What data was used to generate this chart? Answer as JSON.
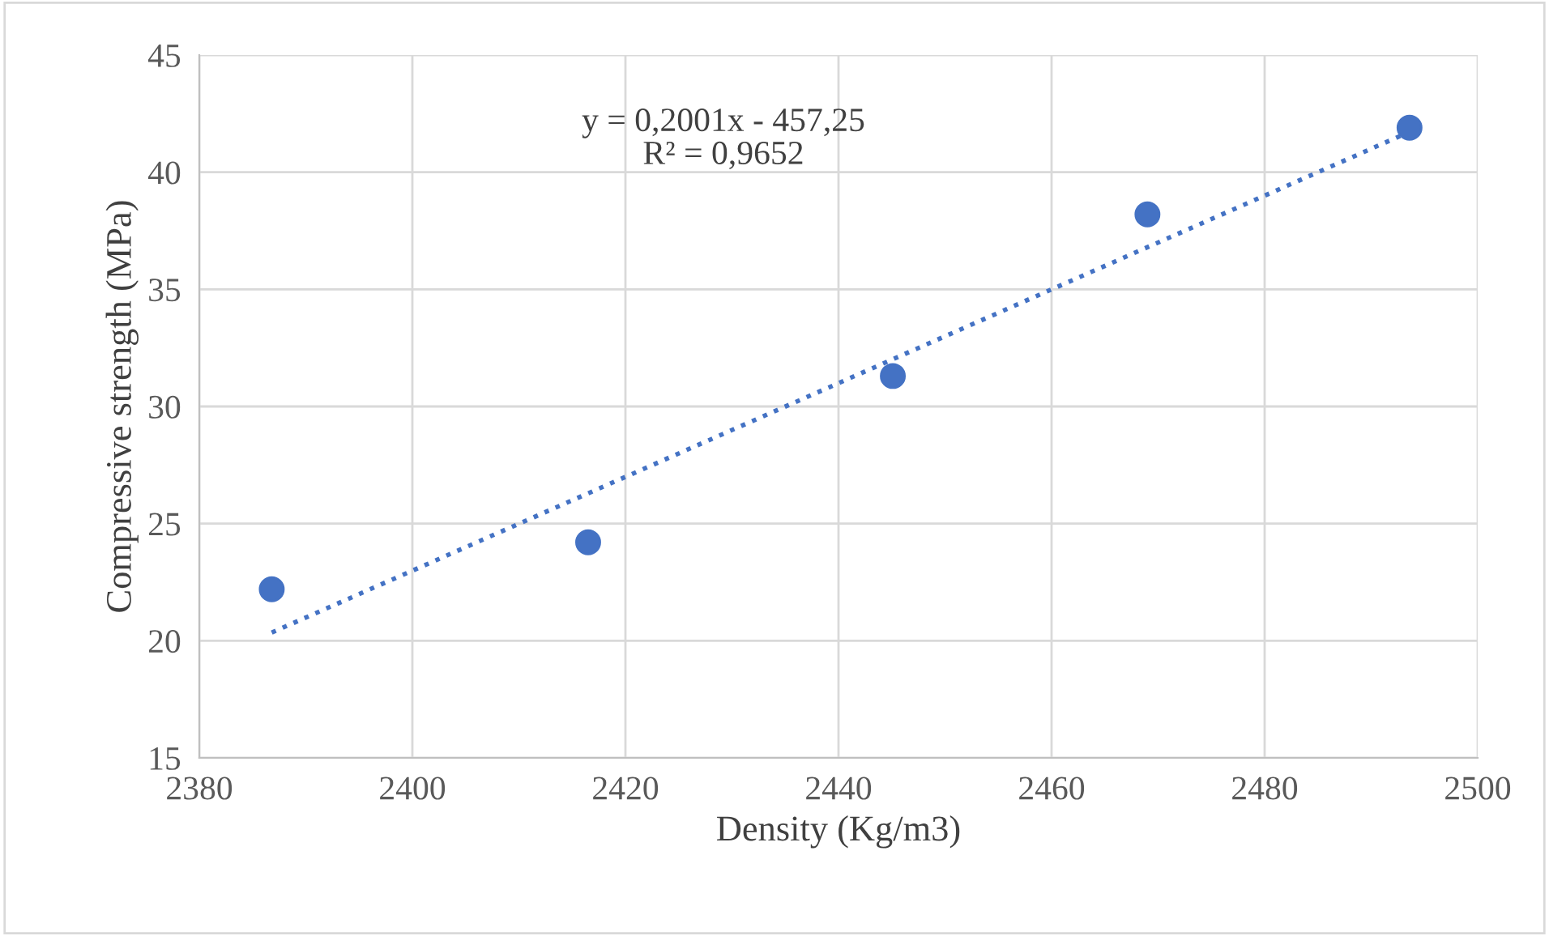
{
  "chart_data": {
    "type": "scatter",
    "xlabel": "Density (Kg/m3)",
    "ylabel": "Compressive strength (MPa)",
    "xlim": [
      2380,
      2500
    ],
    "xticks": [
      2380,
      2400,
      2420,
      2440,
      2460,
      2480,
      2500
    ],
    "ylim": [
      15,
      45
    ],
    "yticks": [
      15,
      20,
      25,
      30,
      35,
      40,
      45
    ],
    "grid": true,
    "legend": false,
    "marker": "circle",
    "annotations": [
      "y = 0,2001x - 457,25\nR² = 0,9652"
    ],
    "x": [
      2386.8,
      2416.5,
      2445.1,
      2469.0,
      2493.6
    ],
    "series": [
      {
        "color": "#4472c4",
        "values": [
          22.2,
          24.2,
          31.3,
          38.2,
          41.9
        ]
      },
      {
        "type": "line",
        "color": "#4472c4",
        "line_style": "dotted",
        "marker": "none",
        "x": [
          2386.8,
          2493.6
        ],
        "values": [
          20.35,
          41.72
        ]
      }
    ]
  }
}
